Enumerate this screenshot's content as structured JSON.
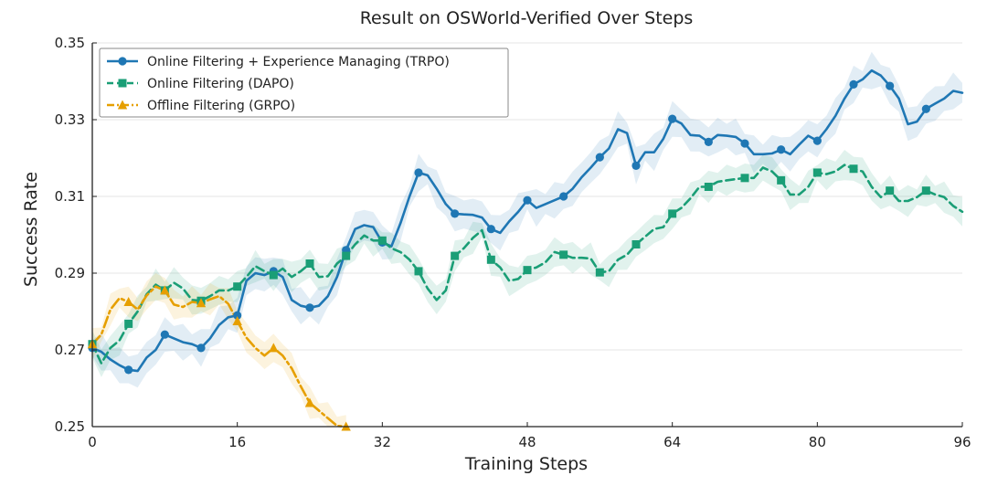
{
  "chart_data": {
    "type": "line",
    "title": "Result on OSWorld-Verified Over Steps",
    "xlabel": "Training Steps",
    "ylabel": "Success Rate",
    "xlim": [
      0,
      96
    ],
    "ylim": [
      0.25,
      0.35
    ],
    "xticks": [
      0,
      16,
      32,
      48,
      64,
      80,
      96
    ],
    "yticks": [
      0.25,
      0.27,
      0.29,
      0.31,
      0.33,
      0.35
    ],
    "xtick_labels": [
      "0",
      "16",
      "32",
      "48",
      "64",
      "80",
      "96"
    ],
    "ytick_labels": [
      "0.25",
      "0.27",
      "0.29",
      "0.31",
      "0.33",
      "0.35"
    ],
    "grid": true,
    "legend_position": "top-left",
    "series": [
      {
        "name": "Online Filtering + Experience Managing (TRPO)",
        "color": "#1f77b4",
        "line_style": "solid",
        "marker": "circle",
        "marker_x": [
          0,
          4,
          8,
          12,
          16,
          20,
          24,
          28,
          32,
          36,
          40,
          44,
          48,
          52,
          56,
          60,
          64,
          68,
          72,
          76,
          80,
          84,
          88,
          92
        ],
        "x": [
          0,
          1,
          2,
          3,
          4,
          5,
          6,
          7,
          8,
          9,
          10,
          11,
          12,
          13,
          14,
          15,
          16,
          17,
          18,
          19,
          20,
          21,
          22,
          23,
          24,
          25,
          26,
          27,
          28,
          29,
          30,
          31,
          32,
          33,
          34,
          35,
          36,
          37,
          38,
          39,
          40,
          41,
          42,
          43,
          44,
          45,
          46,
          47,
          48,
          49,
          50,
          51,
          52,
          53,
          54,
          55,
          56,
          57,
          58,
          59,
          60,
          61,
          62,
          63,
          64,
          65,
          66,
          67,
          68,
          69,
          70,
          71,
          72,
          73,
          74,
          75,
          76,
          77,
          78,
          79,
          80,
          81,
          82,
          83,
          84,
          85,
          86,
          87,
          88,
          89,
          90,
          91,
          92,
          93,
          94,
          95,
          96
        ],
        "y": [
          0.2705,
          0.2695,
          0.2675,
          0.266,
          0.2648,
          0.2645,
          0.268,
          0.27,
          0.274,
          0.273,
          0.272,
          0.2715,
          0.2705,
          0.273,
          0.2765,
          0.2785,
          0.279,
          0.288,
          0.29,
          0.2895,
          0.2905,
          0.289,
          0.283,
          0.2815,
          0.281,
          0.2815,
          0.284,
          0.289,
          0.296,
          0.3015,
          0.3025,
          0.302,
          0.298,
          0.297,
          0.303,
          0.31,
          0.3162,
          0.3155,
          0.312,
          0.308,
          0.3055,
          0.3053,
          0.3052,
          0.3045,
          0.3015,
          0.3005,
          0.3035,
          0.306,
          0.309,
          0.307,
          0.308,
          0.309,
          0.31,
          0.312,
          0.315,
          0.3175,
          0.3202,
          0.3225,
          0.3275,
          0.3265,
          0.318,
          0.3215,
          0.3215,
          0.325,
          0.3302,
          0.329,
          0.326,
          0.3258,
          0.3242,
          0.326,
          0.3258,
          0.3255,
          0.3238,
          0.321,
          0.321,
          0.3212,
          0.3222,
          0.321,
          0.3235,
          0.3258,
          0.3245,
          0.3275,
          0.331,
          0.3355,
          0.3392,
          0.3405,
          0.3428,
          0.3415,
          0.3388,
          0.3355,
          0.3288,
          0.3295,
          0.3328,
          0.3342,
          0.3355,
          0.3375,
          0.337
        ]
      },
      {
        "name": "Online Filtering (DAPO)",
        "color": "#1a9e76",
        "line_style": "dashed",
        "marker": "square",
        "marker_x": [
          0,
          4,
          8,
          12,
          16,
          20,
          24,
          28,
          32,
          36,
          40,
          44,
          48,
          52,
          56,
          60,
          64,
          68,
          72,
          76,
          80,
          84,
          88,
          92
        ],
        "x": [
          0,
          1,
          2,
          3,
          4,
          5,
          6,
          7,
          8,
          9,
          10,
          11,
          12,
          13,
          14,
          15,
          16,
          17,
          18,
          19,
          20,
          21,
          22,
          23,
          24,
          25,
          26,
          27,
          28,
          29,
          30,
          31,
          32,
          33,
          34,
          35,
          36,
          37,
          38,
          39,
          40,
          41,
          42,
          43,
          44,
          45,
          46,
          47,
          48,
          49,
          50,
          51,
          52,
          53,
          54,
          55,
          56,
          57,
          58,
          59,
          60,
          61,
          62,
          63,
          64,
          65,
          66,
          67,
          68,
          69,
          70,
          71,
          72,
          73,
          74,
          75,
          76,
          77,
          78,
          79,
          80,
          81,
          82,
          83,
          84,
          85,
          86,
          87,
          88,
          89,
          90,
          91,
          92,
          93,
          94,
          95,
          96
        ],
        "y": [
          0.2715,
          0.2665,
          0.2705,
          0.2725,
          0.2768,
          0.28,
          0.2845,
          0.287,
          0.2855,
          0.2875,
          0.286,
          0.283,
          0.2828,
          0.284,
          0.2855,
          0.2855,
          0.2865,
          0.289,
          0.2918,
          0.2905,
          0.2895,
          0.2912,
          0.289,
          0.2905,
          0.2925,
          0.289,
          0.2892,
          0.2925,
          0.2945,
          0.2975,
          0.2998,
          0.2985,
          0.2985,
          0.2965,
          0.2955,
          0.2935,
          0.2905,
          0.286,
          0.283,
          0.2855,
          0.2945,
          0.2965,
          0.2992,
          0.3012,
          0.2935,
          0.2915,
          0.288,
          0.2885,
          0.2908,
          0.2915,
          0.2928,
          0.2955,
          0.2948,
          0.294,
          0.294,
          0.2938,
          0.2902,
          0.2905,
          0.2935,
          0.2948,
          0.2975,
          0.2995,
          0.3015,
          0.302,
          0.3055,
          0.307,
          0.3095,
          0.3125,
          0.3125,
          0.3138,
          0.3142,
          0.3145,
          0.3148,
          0.3148,
          0.3175,
          0.3165,
          0.3142,
          0.3105,
          0.3105,
          0.3125,
          0.3162,
          0.3158,
          0.3165,
          0.3182,
          0.3172,
          0.3165,
          0.3125,
          0.3098,
          0.3115,
          0.3088,
          0.3088,
          0.3098,
          0.3115,
          0.3105,
          0.3098,
          0.3075,
          0.306
        ]
      },
      {
        "name": "Offline Filtering (GRPO)",
        "color": "#e69f00",
        "line_style": "dashdot",
        "marker": "triangle",
        "marker_x": [
          0,
          4,
          8,
          12,
          16,
          20,
          24,
          28
        ],
        "x": [
          0,
          1,
          2,
          3,
          4,
          5,
          6,
          7,
          8,
          9,
          10,
          11,
          12,
          13,
          14,
          15,
          16,
          17,
          18,
          19,
          20,
          21,
          22,
          23,
          24,
          25,
          26,
          27,
          28
        ],
        "y": [
          0.2715,
          0.274,
          0.2805,
          0.2835,
          0.2825,
          0.2805,
          0.2842,
          0.2865,
          0.2855,
          0.2818,
          0.2812,
          0.2825,
          0.2822,
          0.2832,
          0.284,
          0.282,
          0.2775,
          0.2732,
          0.2705,
          0.2685,
          0.2705,
          0.2685,
          0.2652,
          0.2605,
          0.2562,
          0.2542,
          0.2522,
          0.2502,
          0.249
        ]
      }
    ]
  }
}
